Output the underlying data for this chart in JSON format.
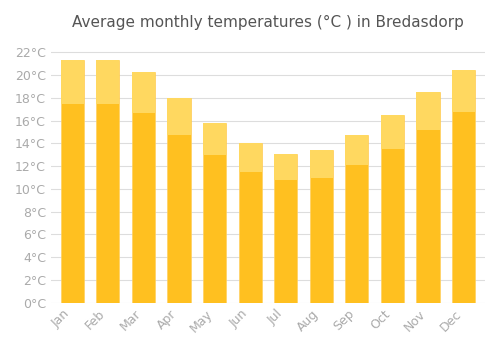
{
  "title": "Average monthly temperatures (°C ) in Bredasdorp",
  "months": [
    "Jan",
    "Feb",
    "Mar",
    "Apr",
    "May",
    "Jun",
    "Jul",
    "Aug",
    "Sep",
    "Oct",
    "Nov",
    "Dec"
  ],
  "temperatures": [
    21.3,
    21.3,
    20.3,
    18.0,
    15.8,
    14.0,
    13.1,
    13.4,
    14.7,
    16.5,
    18.5,
    20.4
  ],
  "bar_color_face": "#FFA500",
  "bar_color_edge": "#FFB733",
  "bar_gradient_top": "#FFD060",
  "ylim": [
    0,
    23
  ],
  "ytick_step": 2,
  "background_color": "#ffffff",
  "grid_color": "#dddddd",
  "title_fontsize": 11,
  "tick_fontsize": 9,
  "tick_color": "#aaaaaa",
  "title_color": "#555555"
}
